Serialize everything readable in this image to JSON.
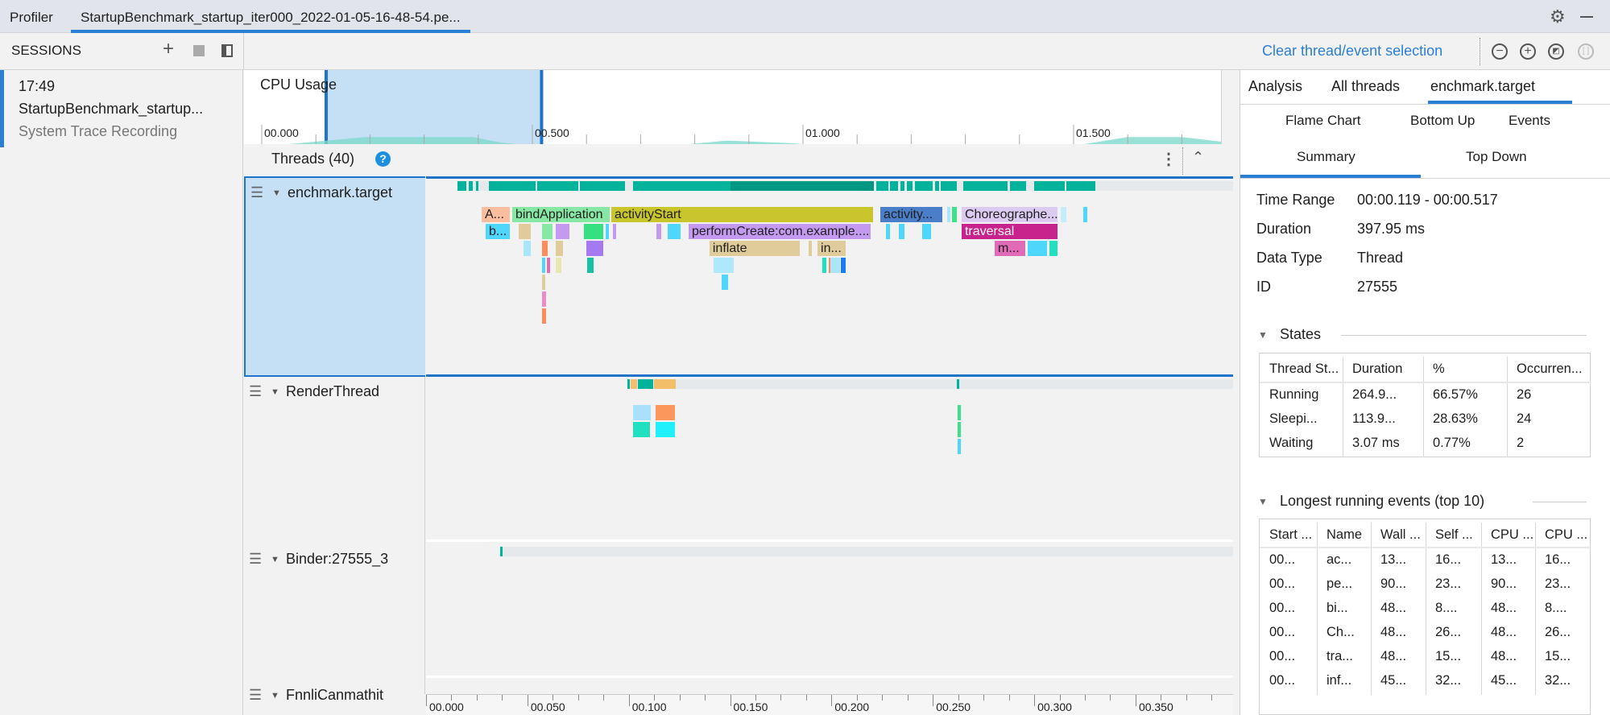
{
  "tabs": [
    {
      "label": "Profiler"
    },
    {
      "label": "StartupBenchmark_startup_iter000_2022-01-05-16-48-54.pe..."
    }
  ],
  "window_icons": [
    "gear-icon",
    "minimize-icon"
  ],
  "sessions": {
    "title": "SESSIONS",
    "item": {
      "time": "17:49",
      "name": "StartupBenchmark_startup...",
      "type": "System Trace Recording"
    }
  },
  "toolbar": {
    "clear_label": "Clear thread/event selection",
    "icons": [
      "zoom-out-icon",
      "zoom-in-icon",
      "reset-zoom-icon",
      "zoom-to-selection-icon"
    ]
  },
  "cpu": {
    "title": "CPU Usage",
    "ticks": [
      "00.000",
      "00.500",
      "01.000",
      "01.500"
    ],
    "tick_values_s": [
      0,
      0.5,
      1.0,
      1.5
    ],
    "selection_s": [
      0.119,
      0.517
    ],
    "usage": [
      [
        0.05,
        0
      ],
      [
        0.086,
        2
      ],
      [
        0.19,
        8
      ],
      [
        0.39,
        8
      ],
      [
        0.44,
        2
      ],
      [
        0.47,
        0
      ],
      [
        0.79,
        0
      ],
      [
        0.86,
        4
      ],
      [
        0.98,
        1
      ],
      [
        1.0,
        0
      ],
      [
        1.52,
        0
      ],
      [
        1.6,
        8
      ],
      [
        1.7,
        8
      ],
      [
        1.77,
        3
      ],
      [
        1.8,
        2
      ]
    ]
  },
  "threads": {
    "title": "Threads (40)",
    "list": [
      {
        "name": "enchmark.target",
        "selected": true,
        "states": [
          [
            15.5,
            20
          ],
          [
            21,
            23
          ],
          [
            24.5,
            26
          ],
          [
            31,
            54
          ],
          [
            55,
            75
          ],
          [
            76,
            98
          ],
          [
            102,
            150
          ],
          [
            150,
            221,
            "#009882"
          ],
          [
            222,
            228
          ],
          [
            229,
            233
          ],
          [
            234,
            236
          ],
          [
            237,
            240
          ],
          [
            241,
            250
          ],
          [
            251,
            253
          ],
          [
            254,
            262
          ],
          [
            265,
            287
          ],
          [
            288,
            296
          ],
          [
            300,
            315
          ],
          [
            316,
            330
          ]
        ],
        "events": [
          [
            0,
            27.4,
            41.7,
            "A...",
            "#fbbf9f"
          ],
          [
            0,
            42.5,
            91.0,
            "bindApplication",
            "#86e8a4"
          ],
          [
            0,
            91.4,
            220.9,
            "activityStart",
            "#c8c62c"
          ],
          [
            0,
            224.1,
            255.1,
            "activity...",
            "#4a7ec8"
          ],
          [
            0,
            257.1,
            259.0,
            "",
            "#a9e6fa"
          ],
          [
            0,
            259.4,
            262.2,
            "",
            "#3fe08a"
          ],
          [
            0,
            264.2,
            311.9,
            "Choreographe...",
            "#dccbf1"
          ],
          [
            0,
            313.1,
            316.3,
            "",
            "#c4ecfb"
          ],
          [
            0,
            324.2,
            326.6,
            "",
            "#4fd6fc"
          ],
          [
            1,
            29.4,
            41.7,
            "b...",
            "#4fd6fc"
          ],
          [
            1,
            45.7,
            52.0,
            "",
            "#e0cc9a"
          ],
          [
            1,
            57.2,
            62.8,
            "",
            "#86e8a4"
          ],
          [
            1,
            64.0,
            71.1,
            "",
            "#c49af0"
          ],
          [
            1,
            77.9,
            87.8,
            "",
            "#36e080"
          ],
          [
            1,
            88.6,
            90.2,
            "",
            "#4fd6fc"
          ],
          [
            1,
            92.2,
            94.2,
            "",
            "#c49af0"
          ],
          [
            1,
            113.6,
            116.4,
            "",
            "#c49af0"
          ],
          [
            1,
            119.2,
            125.9,
            "",
            "#4fd6fc"
          ],
          [
            1,
            129.5,
            219.7,
            "performCreate:com.example....",
            "#c49af0"
          ],
          [
            1,
            226.9,
            229.2,
            "",
            "#4fd6fc"
          ],
          [
            1,
            233.2,
            236.4,
            "",
            "#4fd6fc"
          ],
          [
            1,
            244.7,
            249.5,
            "",
            "#4fd6fc"
          ],
          [
            1,
            264.2,
            311.9,
            "traversal",
            "#c8228c"
          ],
          [
            2,
            48.1,
            52.0,
            "",
            "#a9e6fa"
          ],
          [
            2,
            57.2,
            60.4,
            "",
            "#fb8c5c"
          ],
          [
            2,
            64.0,
            67.9,
            "",
            "#e0cc9a"
          ],
          [
            2,
            79.1,
            87.8,
            "",
            "#a57af0"
          ],
          [
            2,
            139.8,
            184.7,
            "inflate",
            "#e0cc9a"
          ],
          [
            2,
            188.7,
            190.7,
            "",
            "#e0cc9a"
          ],
          [
            2,
            193.1,
            207.4,
            "in...",
            "#e0cc9a"
          ],
          [
            2,
            280.5,
            296.0,
            "m...",
            "#e26bb8"
          ],
          [
            2,
            296.8,
            306.7,
            "",
            "#4fd6fc"
          ],
          [
            2,
            307.5,
            311.9,
            "",
            "#20e0c0"
          ],
          [
            3,
            57.2,
            59.2,
            "",
            "#4fd6fc"
          ],
          [
            3,
            59.5,
            60.8,
            "",
            "#e26bb8"
          ],
          [
            3,
            64.0,
            67.2,
            "",
            "#e6e8b0"
          ],
          [
            3,
            79.5,
            83.0,
            "",
            "#16c0a0"
          ],
          [
            3,
            141.8,
            152.2,
            "",
            "#b0e8fb"
          ],
          [
            3,
            195.5,
            197.9,
            "",
            "#20e0c0"
          ],
          [
            3,
            198.5,
            199.3,
            "",
            "#fb8c5c"
          ],
          [
            3,
            199.4,
            204.6,
            "",
            "#a9e6fa"
          ],
          [
            3,
            204.6,
            207.4,
            "",
            "#1a7ef0"
          ],
          [
            4,
            57.2,
            59.2,
            "",
            "#e0cc9a"
          ],
          [
            4,
            145.8,
            149.4,
            "",
            "#4fd6fc"
          ],
          [
            5,
            57.2,
            59.6,
            "",
            "#e98cc8"
          ],
          [
            6,
            57.2,
            59.6,
            "",
            "#fb8c5c"
          ]
        ]
      },
      {
        "name": "RenderThread",
        "selected": false,
        "states": [
          [
            99.3,
            100.5
          ],
          [
            101,
            104,
            "#f2be6a"
          ],
          [
            104.5,
            112
          ],
          [
            112.5,
            123,
            "#f2be6a"
          ],
          [
            262,
            263
          ]
        ],
        "events": [
          [
            0,
            102.1,
            111.2,
            "",
            "#a9e0fb"
          ],
          [
            0,
            113.2,
            123.2,
            "",
            "#fb965c"
          ],
          [
            0,
            262.2,
            263.2,
            "",
            "#3fe08a"
          ],
          [
            1,
            102.1,
            111.0,
            "",
            "#20e0c0"
          ],
          [
            1,
            113.2,
            123.2,
            "",
            "#20f0fa"
          ],
          [
            1,
            262.2,
            263.2,
            "",
            "#3fe08a"
          ],
          [
            2,
            262.3,
            263.1,
            "",
            "#4fd6fc"
          ]
        ]
      },
      {
        "name": "Binder:27555_3",
        "selected": false,
        "states": [
          [
            36.5,
            37.8
          ]
        ],
        "events": []
      },
      {
        "name": "FnnliCanmathit",
        "selected": false,
        "states": [],
        "events": []
      }
    ]
  },
  "axis": {
    "ticks": [
      "00.000",
      "00.050",
      "00.100",
      "00.150",
      "00.200",
      "00.250",
      "00.300",
      "00.350"
    ],
    "tick_values_ms": [
      0,
      50,
      100,
      150,
      200,
      250,
      300,
      350
    ]
  },
  "right": {
    "tabs": [
      {
        "label": "Analysis"
      },
      {
        "label": "All threads"
      },
      {
        "label": "enchmark.target",
        "active": true
      }
    ],
    "subtabs": [
      {
        "label": "Flame Chart"
      },
      {
        "label": "Bottom Up"
      },
      {
        "label": "Events"
      },
      {
        "label": "Summary",
        "active": true
      },
      {
        "label": "Top Down"
      }
    ],
    "summary": [
      {
        "label": "Time Range",
        "value": "00:00.119 - 00:00.517"
      },
      {
        "label": "Duration",
        "value": "397.95 ms"
      },
      {
        "label": "Data Type",
        "value": "Thread"
      },
      {
        "label": "ID",
        "value": "27555"
      }
    ],
    "states": {
      "title": "States",
      "headers": [
        "Thread St...",
        "Duration",
        "%",
        "Occurren..."
      ],
      "rows": [
        [
          "Running",
          "264.9...",
          "66.57%",
          "26"
        ],
        [
          "Sleepi...",
          "113.9...",
          "28.63%",
          "24"
        ],
        [
          "Waiting",
          "3.07 ms",
          "0.77%",
          "2"
        ]
      ]
    },
    "longest": {
      "title": "Longest running events (top 10)",
      "headers": [
        "Start ...",
        "Name",
        "Wall ...",
        "Self ...",
        "CPU ...",
        "CPU ..."
      ],
      "rows": [
        [
          "00...",
          "ac...",
          "13...",
          "16...",
          "13...",
          "16..."
        ],
        [
          "00...",
          "pe...",
          "90...",
          "23...",
          "90...",
          "23..."
        ],
        [
          "00...",
          "bi...",
          "48...",
          "8....",
          "48...",
          "8...."
        ],
        [
          "00...",
          "Ch...",
          "48...",
          "26...",
          "48...",
          "26..."
        ],
        [
          "00...",
          "tra...",
          "48...",
          "15...",
          "48...",
          "15..."
        ],
        [
          "00...",
          "inf...",
          "45...",
          "32...",
          "45...",
          "32..."
        ]
      ]
    }
  },
  "colors": {
    "accent": "#2a7fd4",
    "selection": "#c5e0f5",
    "state_running": "#00b39a",
    "cpu_area": "#7fd8cc"
  }
}
